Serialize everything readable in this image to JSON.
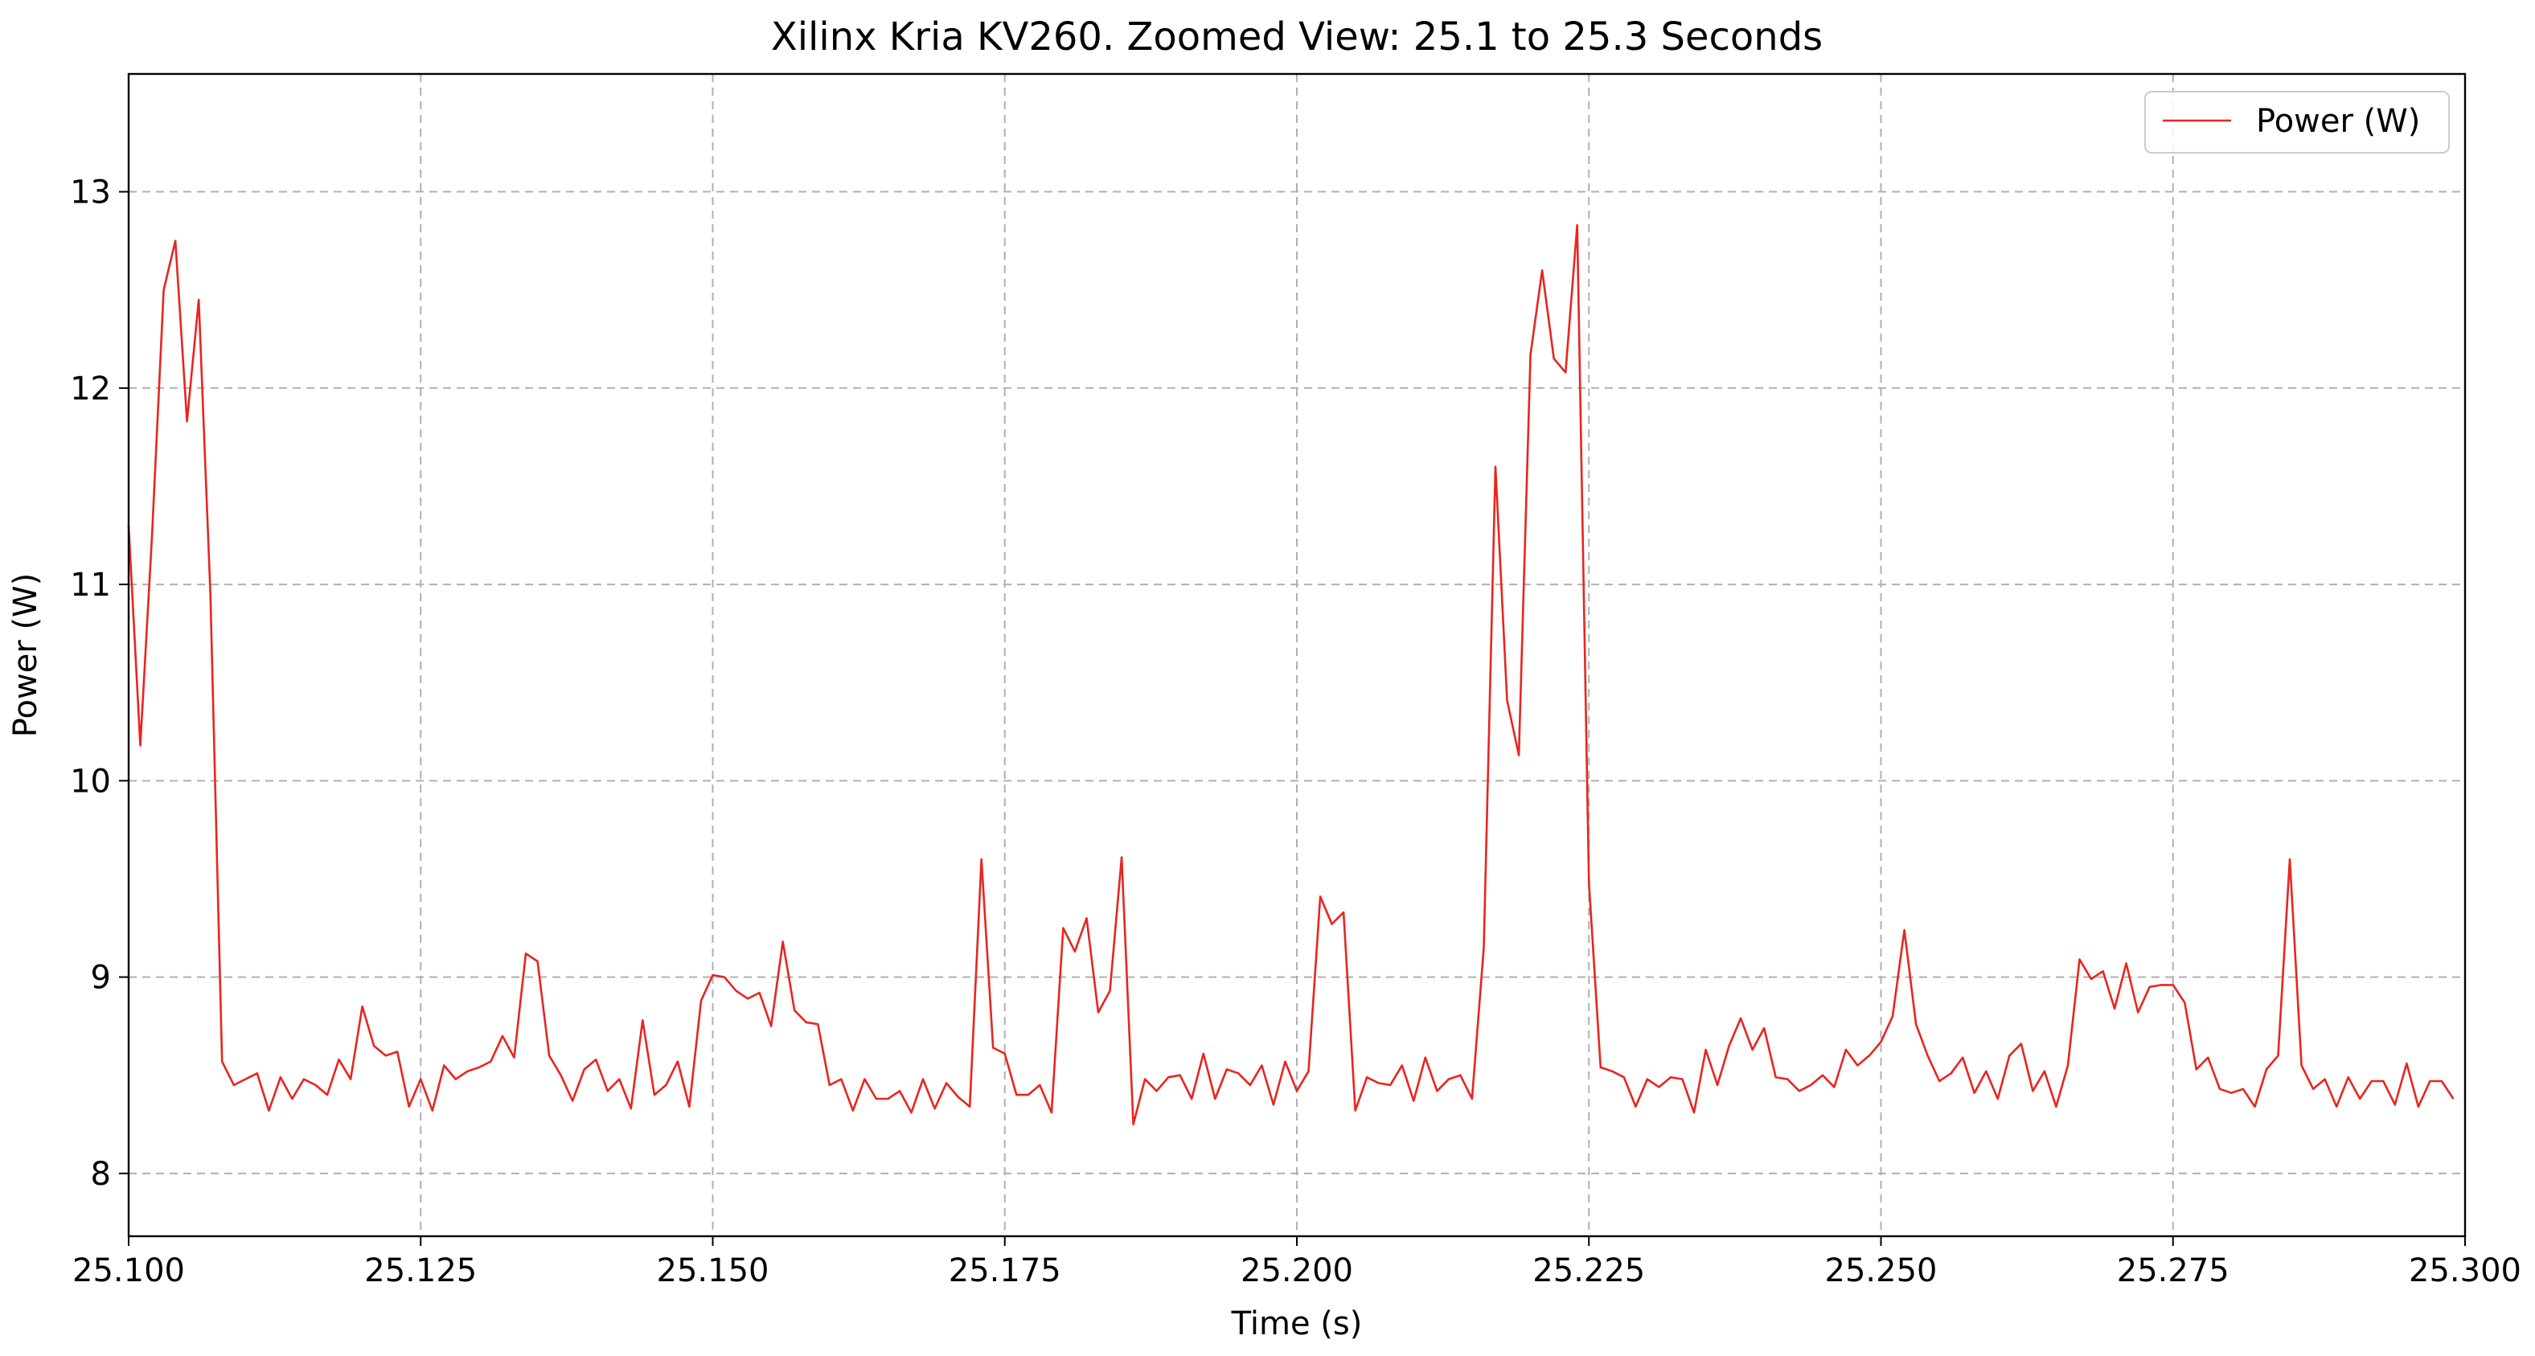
{
  "chart_data": {
    "type": "line",
    "title": "Xilinx Kria KV260. Zoomed View: 25.1 to 25.3 Seconds",
    "xlabel": "Time (s)",
    "ylabel": "Power (W)",
    "xlim": [
      25.1,
      25.3
    ],
    "ylim": [
      7.68,
      13.6
    ],
    "x_ticks": [
      25.1,
      25.125,
      25.15,
      25.175,
      25.2,
      25.225,
      25.25,
      25.275,
      25.3
    ],
    "x_tick_labels": [
      "25.100",
      "25.125",
      "25.150",
      "25.175",
      "25.200",
      "25.225",
      "25.250",
      "25.275",
      "25.300"
    ],
    "y_ticks": [
      8,
      9,
      10,
      11,
      12,
      13
    ],
    "y_tick_labels": [
      "8",
      "9",
      "10",
      "11",
      "12",
      "13"
    ],
    "grid": true,
    "legend_position": "top-right",
    "series": [
      {
        "name": "Power (W)",
        "color": "#e8251f",
        "x_start": 25.1,
        "x_step": 0.001,
        "values": [
          11.3,
          10.18,
          11.25,
          12.5,
          12.75,
          11.83,
          12.45,
          10.95,
          8.57,
          8.45,
          8.48,
          8.51,
          8.32,
          8.49,
          8.38,
          8.48,
          8.45,
          8.4,
          8.58,
          8.48,
          8.85,
          8.65,
          8.6,
          8.62,
          8.34,
          8.48,
          8.32,
          8.55,
          8.48,
          8.52,
          8.54,
          8.57,
          8.7,
          8.59,
          9.12,
          9.08,
          8.6,
          8.5,
          8.37,
          8.53,
          8.58,
          8.42,
          8.48,
          8.33,
          8.78,
          8.4,
          8.45,
          8.57,
          8.34,
          8.88,
          9.01,
          9.0,
          8.93,
          8.89,
          8.92,
          8.75,
          9.18,
          8.83,
          8.77,
          8.76,
          8.45,
          8.48,
          8.32,
          8.48,
          8.38,
          8.38,
          8.42,
          8.31,
          8.48,
          8.33,
          8.46,
          8.39,
          8.34,
          9.6,
          8.64,
          8.61,
          8.4,
          8.4,
          8.45,
          8.31,
          9.25,
          9.13,
          9.3,
          8.82,
          8.93,
          9.61,
          8.25,
          8.48,
          8.42,
          8.49,
          8.5,
          8.38,
          8.61,
          8.38,
          8.53,
          8.51,
          8.45,
          8.55,
          8.35,
          8.57,
          8.42,
          8.52,
          9.41,
          9.27,
          9.33,
          8.32,
          8.49,
          8.46,
          8.45,
          8.55,
          8.37,
          8.59,
          8.42,
          8.48,
          8.5,
          8.38,
          9.15,
          11.6,
          10.41,
          10.13,
          12.17,
          12.6,
          12.15,
          12.08,
          12.83,
          9.48,
          8.54,
          8.52,
          8.49,
          8.34,
          8.48,
          8.44,
          8.49,
          8.48,
          8.31,
          8.63,
          8.45,
          8.65,
          8.79,
          8.63,
          8.74,
          8.49,
          8.48,
          8.42,
          8.45,
          8.5,
          8.44,
          8.63,
          8.55,
          8.6,
          8.67,
          8.8,
          9.24,
          8.76,
          8.6,
          8.47,
          8.51,
          8.59,
          8.41,
          8.52,
          8.38,
          8.6,
          8.66,
          8.42,
          8.52,
          8.34,
          8.55,
          9.09,
          8.99,
          9.03,
          8.84,
          9.07,
          8.82,
          8.95,
          8.96,
          8.96,
          8.87,
          8.53,
          8.59,
          8.43,
          8.41,
          8.43,
          8.34,
          8.53,
          8.6,
          9.6,
          8.55,
          8.43,
          8.48,
          8.34,
          8.49,
          8.38,
          8.47,
          8.47,
          8.35,
          8.56,
          8.34,
          8.47,
          8.47,
          8.38
        ]
      }
    ]
  }
}
